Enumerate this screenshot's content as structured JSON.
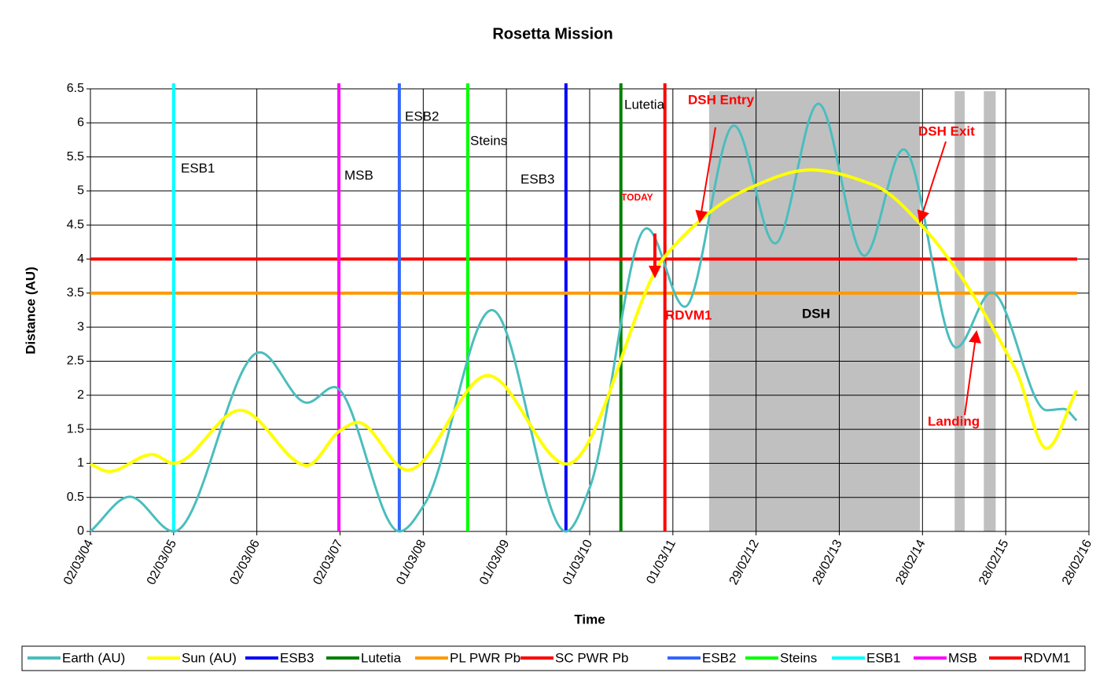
{
  "chart_data": {
    "type": "line",
    "title": "Rosetta Mission",
    "x_label": "Time",
    "y_label": "Distance (AU)",
    "ylim": [
      0,
      6.5
    ],
    "yticks": [
      0,
      0.5,
      1,
      1.5,
      2,
      2.5,
      3,
      3.5,
      4,
      4.5,
      5,
      5.5,
      6,
      6.5
    ],
    "xlim": [
      "2004-03-02",
      "2016-02-28"
    ],
    "xticks": [
      {
        "value": "2004-03-02",
        "label": "02/03/04"
      },
      {
        "value": "2005-03-02",
        "label": "02/03/05"
      },
      {
        "value": "2006-03-02",
        "label": "02/03/06"
      },
      {
        "value": "2007-03-02",
        "label": "02/03/07"
      },
      {
        "value": "2008-03-01",
        "label": "01/03/08"
      },
      {
        "value": "2009-03-01",
        "label": "01/03/09"
      },
      {
        "value": "2010-03-01",
        "label": "01/03/10"
      },
      {
        "value": "2011-03-01",
        "label": "01/03/11"
      },
      {
        "value": "2012-02-29",
        "label": "29/02/12"
      },
      {
        "value": "2013-02-28",
        "label": "28/02/13"
      },
      {
        "value": "2014-02-28",
        "label": "28/02/14"
      },
      {
        "value": "2015-02-28",
        "label": "28/02/15"
      },
      {
        "value": "2016-02-28",
        "label": "28/02/16"
      }
    ],
    "grid": true,
    "series": [
      {
        "name": "Earth (AU)",
        "color": "#4bbdbd",
        "x": [
          "2004-03-02",
          "2004-08-22",
          "2005-03-02",
          "2006-03-15",
          "2006-10-08",
          "2007-02-05",
          "2007-11-17",
          "2008-03-10",
          "2008-12-27",
          "2009-11-17",
          "2010-03-02",
          "2010-11-06",
          "2011-04-22",
          "2011-11-24",
          "2012-05-22",
          "2012-11-28",
          "2013-06-18",
          "2013-12-07",
          "2014-07-26",
          "2014-12-28",
          "2015-08-26",
          "2015-11-10",
          "2016-01-05"
        ],
        "values": [
          0,
          0.51,
          0,
          2.63,
          1.89,
          2.12,
          0,
          0.42,
          3.25,
          0,
          0.65,
          4.45,
          3.3,
          5.96,
          4.23,
          6.28,
          4.05,
          5.61,
          2.7,
          3.51,
          1.78,
          1.8,
          1.63
        ]
      },
      {
        "name": "Sun (AU)",
        "color": "#ffff00",
        "x": [
          "2004-03-02",
          "2004-05-22",
          "2004-11-28",
          "2005-03-02",
          "2005-12-20",
          "2006-10-08",
          "2007-03-02",
          "2007-05-19",
          "2007-12-24",
          "2008-12-09",
          "2009-11-20",
          "2011-01-25",
          "2012-01-23",
          "2012-10-26",
          "2013-07-28",
          "2014-02-20",
          "2015-04-12",
          "2015-08-26",
          "2016-01-05"
        ],
        "values": [
          0.99,
          0.88,
          1.13,
          1.0,
          1.78,
          0.97,
          1.48,
          1.6,
          0.9,
          2.29,
          0.99,
          4.04,
          5.03,
          5.31,
          5.09,
          4.51,
          2.38,
          1.22,
          2.07
        ]
      },
      {
        "name": "ESB3",
        "color": "#0000ff",
        "x_value": "2009-11-17"
      },
      {
        "name": "Lutetia",
        "color": "#008000",
        "x_value": "2010-07-16"
      },
      {
        "name": "PL PWR Pb",
        "color": "#ff9900",
        "y_value": 3.5
      },
      {
        "name": "SC PWR Pb",
        "color": "#ff0000",
        "y_value": 4
      },
      {
        "name": "ESB2",
        "color": "#3366ff",
        "x_value": "2007-11-17"
      },
      {
        "name": "Steins",
        "color": "#00ff00",
        "x_value": "2008-09-12"
      },
      {
        "name": "ESB1",
        "color": "#00ffff",
        "x_value": "2005-03-02"
      },
      {
        "name": "MSB",
        "color": "#ff00ff",
        "x_value": "2007-02-25"
      },
      {
        "name": "RDVM1",
        "color": "#ff0000",
        "x_value": "2011-01-25"
      }
    ],
    "shaded_regions": [
      [
        "2011-08-07",
        "2014-02-17"
      ],
      [
        "2014-07-19",
        "2014-09-01"
      ],
      [
        "2014-11-24",
        "2015-01-15"
      ]
    ],
    "shade_color": "#c0c0c0",
    "annotations": [
      "ESB1",
      "MSB",
      "ESB2",
      "Steins",
      "ESB3",
      "Lutetia",
      "DSH Entry",
      "DSH Exit",
      "TODAY",
      "RDVM1",
      "DSH",
      "Landing"
    ]
  }
}
